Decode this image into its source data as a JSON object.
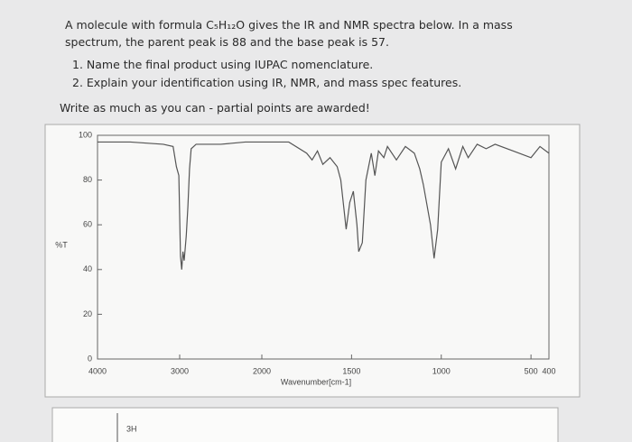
{
  "question": {
    "intro": "A molecule with formula C₅H₁₂O gives the IR and NMR spectra below.  In a mass spectrum, the parent peak is 88 and the base peak is 57.",
    "items": [
      "1. Name the final product using IUPAC nomenclature.",
      "2. Explain your identification using IR, NMR, and mass spec features."
    ],
    "note": "Write as much as you can - partial points are awarded!"
  },
  "chart_data": {
    "type": "line",
    "xlabel": "Wavenumber[cm-1]",
    "ylabel": "%T",
    "xlim": [
      4000,
      400
    ],
    "ylim": [
      0,
      100
    ],
    "xticks": [
      4000,
      3000,
      2000,
      1500,
      1000,
      500,
      400
    ],
    "yticks": [
      0,
      20,
      40,
      60,
      80,
      100
    ],
    "x": [
      4000,
      3600,
      3200,
      3080,
      3040,
      3010,
      2990,
      2975,
      2960,
      2945,
      2920,
      2900,
      2880,
      2860,
      2800,
      2500,
      2200,
      2000,
      1850,
      1750,
      1720,
      1690,
      1660,
      1620,
      1580,
      1560,
      1530,
      1510,
      1490,
      1470,
      1460,
      1440,
      1420,
      1390,
      1370,
      1350,
      1320,
      1300,
      1250,
      1200,
      1150,
      1120,
      1100,
      1060,
      1040,
      1020,
      1000,
      960,
      920,
      880,
      850,
      800,
      750,
      700,
      600,
      500,
      450,
      400
    ],
    "series": [
      {
        "color": "#555555",
        "values": [
          97,
          97,
          96,
          95,
          86,
          82,
          46,
          40,
          48,
          44,
          55,
          68,
          85,
          94,
          96,
          96,
          97,
          97,
          97,
          92,
          89,
          93,
          87,
          90,
          86,
          80,
          58,
          70,
          75,
          60,
          48,
          52,
          80,
          92,
          82,
          93,
          90,
          95,
          89,
          95,
          92,
          85,
          78,
          60,
          45,
          58,
          88,
          94,
          85,
          95,
          90,
          96,
          94,
          96,
          93,
          90,
          95,
          92
        ]
      }
    ]
  },
  "nmr": {
    "label": "3H"
  }
}
